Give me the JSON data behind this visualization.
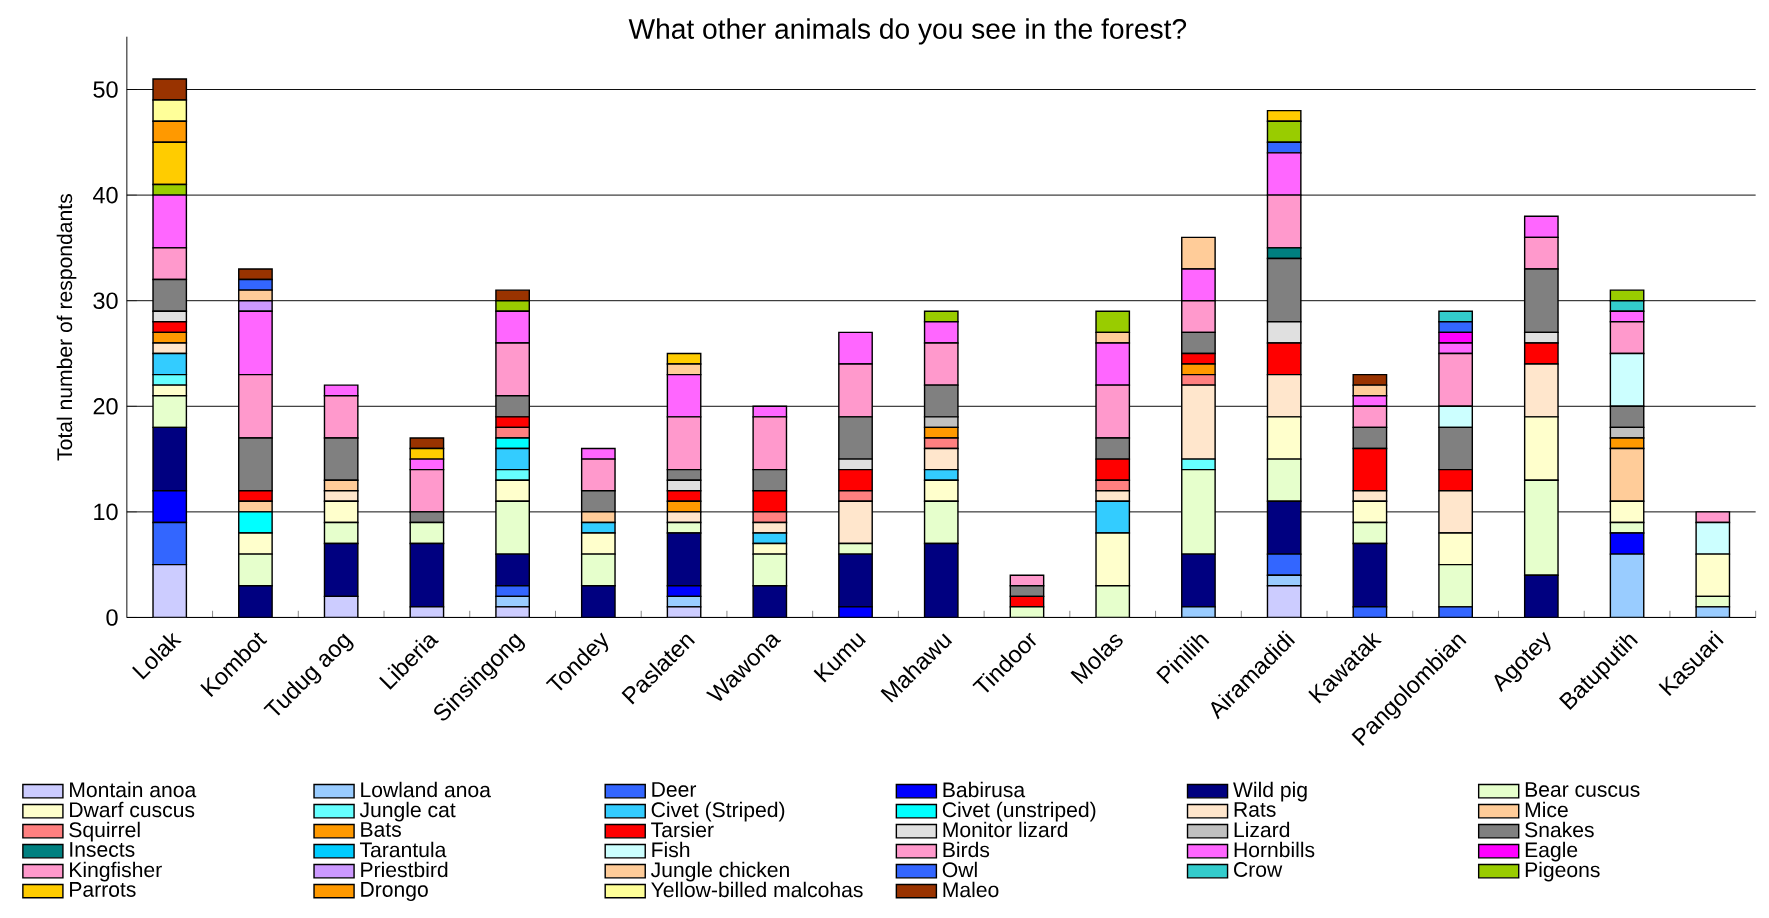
{
  "chart_data": {
    "type": "bar",
    "stacked": true,
    "title": "What other animals do you see in the forest?",
    "ylabel": "Total number of respondants",
    "categories": [
      "Lolak",
      "Kombot",
      "Tudug aog",
      "Liberia",
      "Sinsingong",
      "Tondey",
      "Paslaten",
      "Wawona",
      "Kumu",
      "Mahawu",
      "Tindoor",
      "Molas",
      "Pinilih",
      "Airamadidi",
      "Kawatak",
      "Pangolombian",
      "Agotey",
      "Batuputih",
      "Kasuari"
    ],
    "ylim": [
      0,
      55
    ],
    "yticks": [
      0,
      10,
      20,
      30,
      40,
      50
    ],
    "grid": "y",
    "legend": "bottom",
    "series": [
      {
        "name": "Montain anoa",
        "color": "#ccccff",
        "values": [
          5,
          0,
          2,
          1,
          1,
          0,
          1,
          0,
          0,
          0,
          0,
          0,
          0,
          3,
          0,
          0,
          0,
          0,
          0
        ]
      },
      {
        "name": "Lowland anoa",
        "color": "#99ccff",
        "values": [
          0,
          0,
          0,
          0,
          1,
          0,
          1,
          0,
          0,
          0,
          0,
          0,
          1,
          1,
          0,
          0,
          0,
          6,
          1
        ]
      },
      {
        "name": "Deer",
        "color": "#3366ff",
        "values": [
          4,
          0,
          0,
          0,
          1,
          0,
          0,
          0,
          0,
          0,
          0,
          0,
          0,
          2,
          1,
          1,
          0,
          0,
          0
        ]
      },
      {
        "name": "Babirusa",
        "color": "#0000ff",
        "values": [
          3,
          0,
          0,
          0,
          0,
          0,
          1,
          0,
          1,
          0,
          0,
          0,
          0,
          0,
          0,
          0,
          0,
          2,
          0
        ]
      },
      {
        "name": "Wild pig",
        "color": "#000080",
        "values": [
          6,
          3,
          5,
          6,
          3,
          3,
          5,
          3,
          5,
          7,
          0,
          0,
          5,
          5,
          6,
          0,
          4,
          0,
          0
        ]
      },
      {
        "name": "Bear cuscus",
        "color": "#e6ffcc",
        "values": [
          3,
          3,
          2,
          2,
          5,
          3,
          1,
          3,
          1,
          4,
          1,
          3,
          8,
          4,
          2,
          4,
          9,
          1,
          1
        ]
      },
      {
        "name": "Dwarf cuscus",
        "color": "#ffffcc",
        "values": [
          1,
          2,
          2,
          0,
          2,
          2,
          0,
          1,
          0,
          2,
          0,
          5,
          0,
          4,
          2,
          3,
          6,
          2,
          4
        ]
      },
      {
        "name": "Jungle cat",
        "color": "#66ffff",
        "values": [
          1,
          0,
          0,
          0,
          1,
          0,
          0,
          0,
          0,
          0,
          0,
          0,
          1,
          0,
          0,
          0,
          0,
          0,
          0
        ]
      },
      {
        "name": "Civet (Striped)",
        "color": "#33ccff",
        "values": [
          2,
          0,
          0,
          0,
          2,
          1,
          0,
          1,
          0,
          1,
          0,
          3,
          0,
          0,
          0,
          0,
          0,
          0,
          0
        ]
      },
      {
        "name": "Civet (unstriped)",
        "color": "#00ffff",
        "values": [
          0,
          2,
          0,
          0,
          1,
          0,
          0,
          0,
          0,
          0,
          0,
          0,
          0,
          0,
          0,
          0,
          0,
          0,
          0
        ]
      },
      {
        "name": "Rats",
        "color": "#ffe6cc",
        "values": [
          1,
          0,
          1,
          0,
          0,
          0,
          1,
          1,
          4,
          2,
          0,
          1,
          7,
          4,
          1,
          4,
          5,
          0,
          0
        ]
      },
      {
        "name": "Mice",
        "color": "#ffcc99",
        "values": [
          0,
          1,
          1,
          0,
          0,
          1,
          0,
          0,
          0,
          0,
          0,
          0,
          0,
          0,
          0,
          0,
          0,
          5,
          0
        ]
      },
      {
        "name": "Squirrel",
        "color": "#ff8080",
        "values": [
          0,
          0,
          0,
          0,
          1,
          0,
          0,
          1,
          1,
          1,
          0,
          1,
          1,
          0,
          0,
          0,
          0,
          0,
          0
        ]
      },
      {
        "name": "Bats",
        "color": "#ff9900",
        "values": [
          1,
          0,
          0,
          0,
          0,
          0,
          1,
          0,
          0,
          1,
          0,
          0,
          1,
          0,
          0,
          0,
          0,
          1,
          0
        ]
      },
      {
        "name": "Tarsier",
        "color": "#ff0000",
        "values": [
          1,
          1,
          0,
          0,
          1,
          0,
          1,
          2,
          2,
          0,
          1,
          2,
          1,
          3,
          4,
          2,
          2,
          0,
          0
        ]
      },
      {
        "name": "Monitor lizard",
        "color": "#e0e0e0",
        "values": [
          1,
          0,
          0,
          0,
          0,
          0,
          1,
          0,
          1,
          0,
          0,
          0,
          0,
          2,
          0,
          0,
          1,
          0,
          0
        ]
      },
      {
        "name": "Lizard",
        "color": "#c0c0c0",
        "values": [
          0,
          0,
          0,
          0,
          0,
          0,
          0,
          0,
          0,
          1,
          0,
          0,
          0,
          0,
          0,
          0,
          0,
          1,
          0
        ]
      },
      {
        "name": "Snakes",
        "color": "#808080",
        "values": [
          3,
          5,
          4,
          1,
          2,
          2,
          1,
          2,
          4,
          3,
          1,
          2,
          2,
          6,
          2,
          4,
          6,
          2,
          0
        ]
      },
      {
        "name": "Insects",
        "color": "#008080",
        "values": [
          0,
          0,
          0,
          0,
          0,
          0,
          0,
          0,
          0,
          0,
          0,
          0,
          0,
          1,
          0,
          0,
          0,
          0,
          0
        ]
      },
      {
        "name": "Tarantula",
        "color": "#00ccff",
        "values": [
          0,
          0,
          0,
          0,
          0,
          0,
          0,
          0,
          0,
          0,
          0,
          0,
          0,
          0,
          0,
          0,
          0,
          0,
          0
        ]
      },
      {
        "name": "Fish",
        "color": "#ccffff",
        "values": [
          0,
          0,
          0,
          0,
          0,
          0,
          0,
          0,
          0,
          0,
          0,
          0,
          0,
          0,
          0,
          2,
          0,
          5,
          3
        ]
      },
      {
        "name": "Birds",
        "color": "#ff99cc",
        "values": [
          3,
          6,
          4,
          4,
          5,
          3,
          5,
          5,
          5,
          4,
          1,
          5,
          3,
          5,
          2,
          5,
          3,
          3,
          1
        ]
      },
      {
        "name": "Hornbills",
        "color": "#ff66ff",
        "values": [
          5,
          6,
          1,
          1,
          3,
          1,
          4,
          1,
          3,
          2,
          0,
          4,
          3,
          4,
          1,
          1,
          2,
          1,
          0
        ]
      },
      {
        "name": "Eagle",
        "color": "#ff00ff",
        "values": [
          0,
          0,
          0,
          0,
          0,
          0,
          0,
          0,
          0,
          0,
          0,
          0,
          0,
          0,
          0,
          1,
          0,
          0,
          0
        ]
      },
      {
        "name": "Kingfisher",
        "color": "#ff99cc",
        "values": [
          0,
          0,
          0,
          0,
          0,
          0,
          0,
          0,
          0,
          0,
          0,
          0,
          0,
          0,
          0,
          0,
          0,
          0,
          0
        ]
      },
      {
        "name": "Priestbird",
        "color": "#cc99ff",
        "values": [
          0,
          1,
          0,
          0,
          0,
          0,
          0,
          0,
          0,
          0,
          0,
          0,
          0,
          0,
          0,
          0,
          0,
          0,
          0
        ]
      },
      {
        "name": "Jungle chicken",
        "color": "#ffcc99",
        "values": [
          0,
          1,
          0,
          0,
          0,
          0,
          1,
          0,
          0,
          0,
          0,
          1,
          3,
          0,
          1,
          0,
          0,
          0,
          0
        ]
      },
      {
        "name": "Owl",
        "color": "#3366ff",
        "values": [
          0,
          1,
          0,
          0,
          0,
          0,
          0,
          0,
          0,
          0,
          0,
          0,
          0,
          1,
          0,
          1,
          0,
          0,
          0
        ]
      },
      {
        "name": "Crow",
        "color": "#33cccc",
        "values": [
          0,
          0,
          0,
          0,
          0,
          0,
          0,
          0,
          0,
          0,
          0,
          0,
          0,
          0,
          0,
          1,
          0,
          1,
          0
        ]
      },
      {
        "name": "Pigeons",
        "color": "#99cc00",
        "values": [
          1,
          0,
          0,
          0,
          1,
          0,
          0,
          0,
          0,
          1,
          0,
          2,
          0,
          2,
          0,
          0,
          0,
          1,
          0
        ]
      },
      {
        "name": "Parrots",
        "color": "#ffcc00",
        "values": [
          4,
          0,
          0,
          1,
          0,
          0,
          1,
          0,
          0,
          0,
          0,
          0,
          0,
          1,
          0,
          0,
          0,
          0,
          0
        ]
      },
      {
        "name": "Drongo",
        "color": "#ff9900",
        "values": [
          2,
          0,
          0,
          0,
          0,
          0,
          0,
          0,
          0,
          0,
          0,
          0,
          0,
          0,
          0,
          0,
          0,
          0,
          0
        ]
      },
      {
        "name": "Yellow-billed malcohas",
        "color": "#ffff99",
        "values": [
          2,
          0,
          0,
          0,
          0,
          0,
          0,
          0,
          0,
          0,
          0,
          0,
          0,
          0,
          0,
          0,
          0,
          0,
          0
        ]
      },
      {
        "name": "Maleo",
        "color": "#993300",
        "values": [
          2,
          1,
          0,
          1,
          1,
          0,
          0,
          0,
          0,
          0,
          0,
          0,
          0,
          0,
          1,
          0,
          0,
          0,
          0
        ]
      }
    ]
  }
}
